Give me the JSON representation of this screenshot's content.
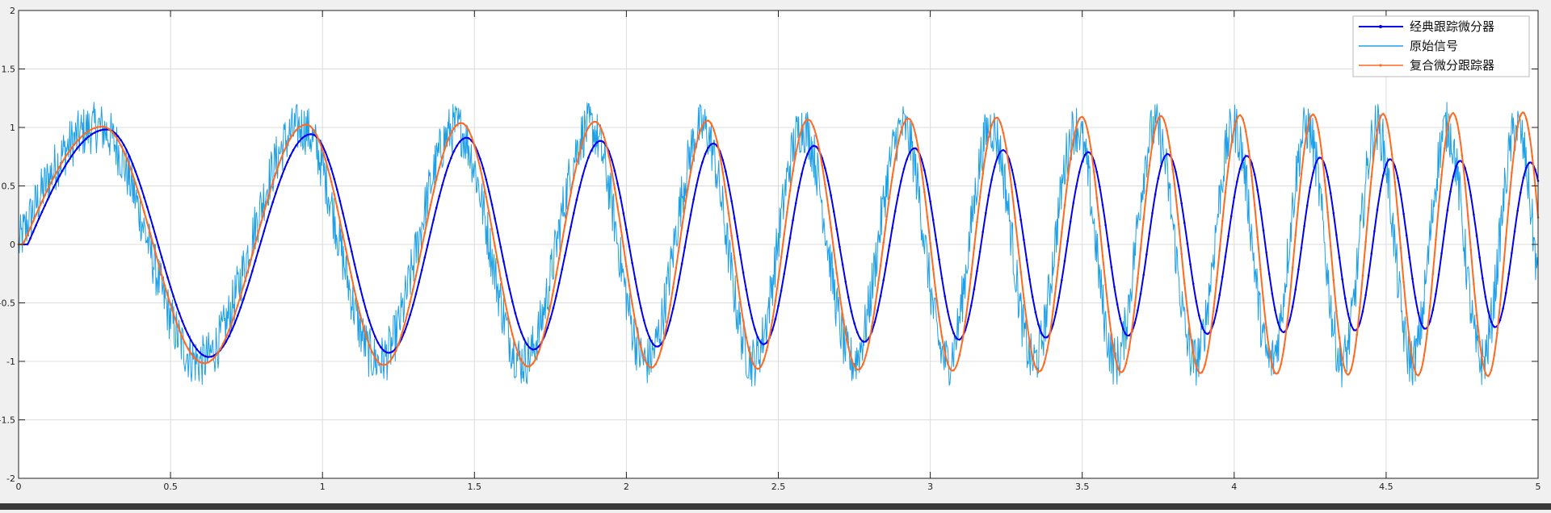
{
  "chart_data": {
    "type": "line",
    "title": "",
    "xlabel": "",
    "ylabel": "",
    "xlim": [
      0,
      5
    ],
    "ylim": [
      -2,
      2
    ],
    "xticks": [
      0,
      0.5,
      1,
      1.5,
      2,
      2.5,
      3,
      3.5,
      4,
      4.5,
      5
    ],
    "yticks": [
      -2,
      -1.5,
      -1,
      -0.5,
      0,
      0.5,
      1,
      1.5,
      2
    ],
    "xtick_labels": [
      "0",
      "0.5",
      "1",
      "1.5",
      "2",
      "2.5",
      "3",
      "3.5",
      "4",
      "4.5",
      "5"
    ],
    "ytick_labels": [
      "-2",
      "-1.5",
      "-1",
      "-0.5",
      "0",
      "0.5",
      "1",
      "1.5",
      "2"
    ],
    "grid": true,
    "legend_position": "top-right",
    "signal": {
      "form": "sin(2*pi*f(t)*t) + noise",
      "peak_times": [
        0.26,
        0.93,
        1.44,
        1.88,
        2.25,
        2.58,
        2.91,
        3.2,
        3.48,
        3.74,
        4.0,
        4.24,
        4.47,
        4.7,
        4.93
      ],
      "noise_amplitude": 0.22
    },
    "series": [
      {
        "name": "经典跟踪微分器",
        "color": "#0000ee",
        "marker": "dot",
        "tracks": "signal",
        "lag_s": [
          0.03,
          0.045
        ],
        "amplitude": [
          1.0,
          0.7
        ]
      },
      {
        "name": "原始信号",
        "color": "#1ea0e6",
        "marker": "none",
        "tracks": "signal",
        "lag_s": [
          0,
          0
        ],
        "amplitude": [
          1.0,
          1.0
        ],
        "noise": true
      },
      {
        "name": "复合微分跟踪器",
        "color": "#ff6a20",
        "marker": "dot",
        "tracks": "signal",
        "lag_s": [
          0.015,
          0.02
        ],
        "amplitude": [
          1.0,
          1.13
        ]
      }
    ]
  }
}
